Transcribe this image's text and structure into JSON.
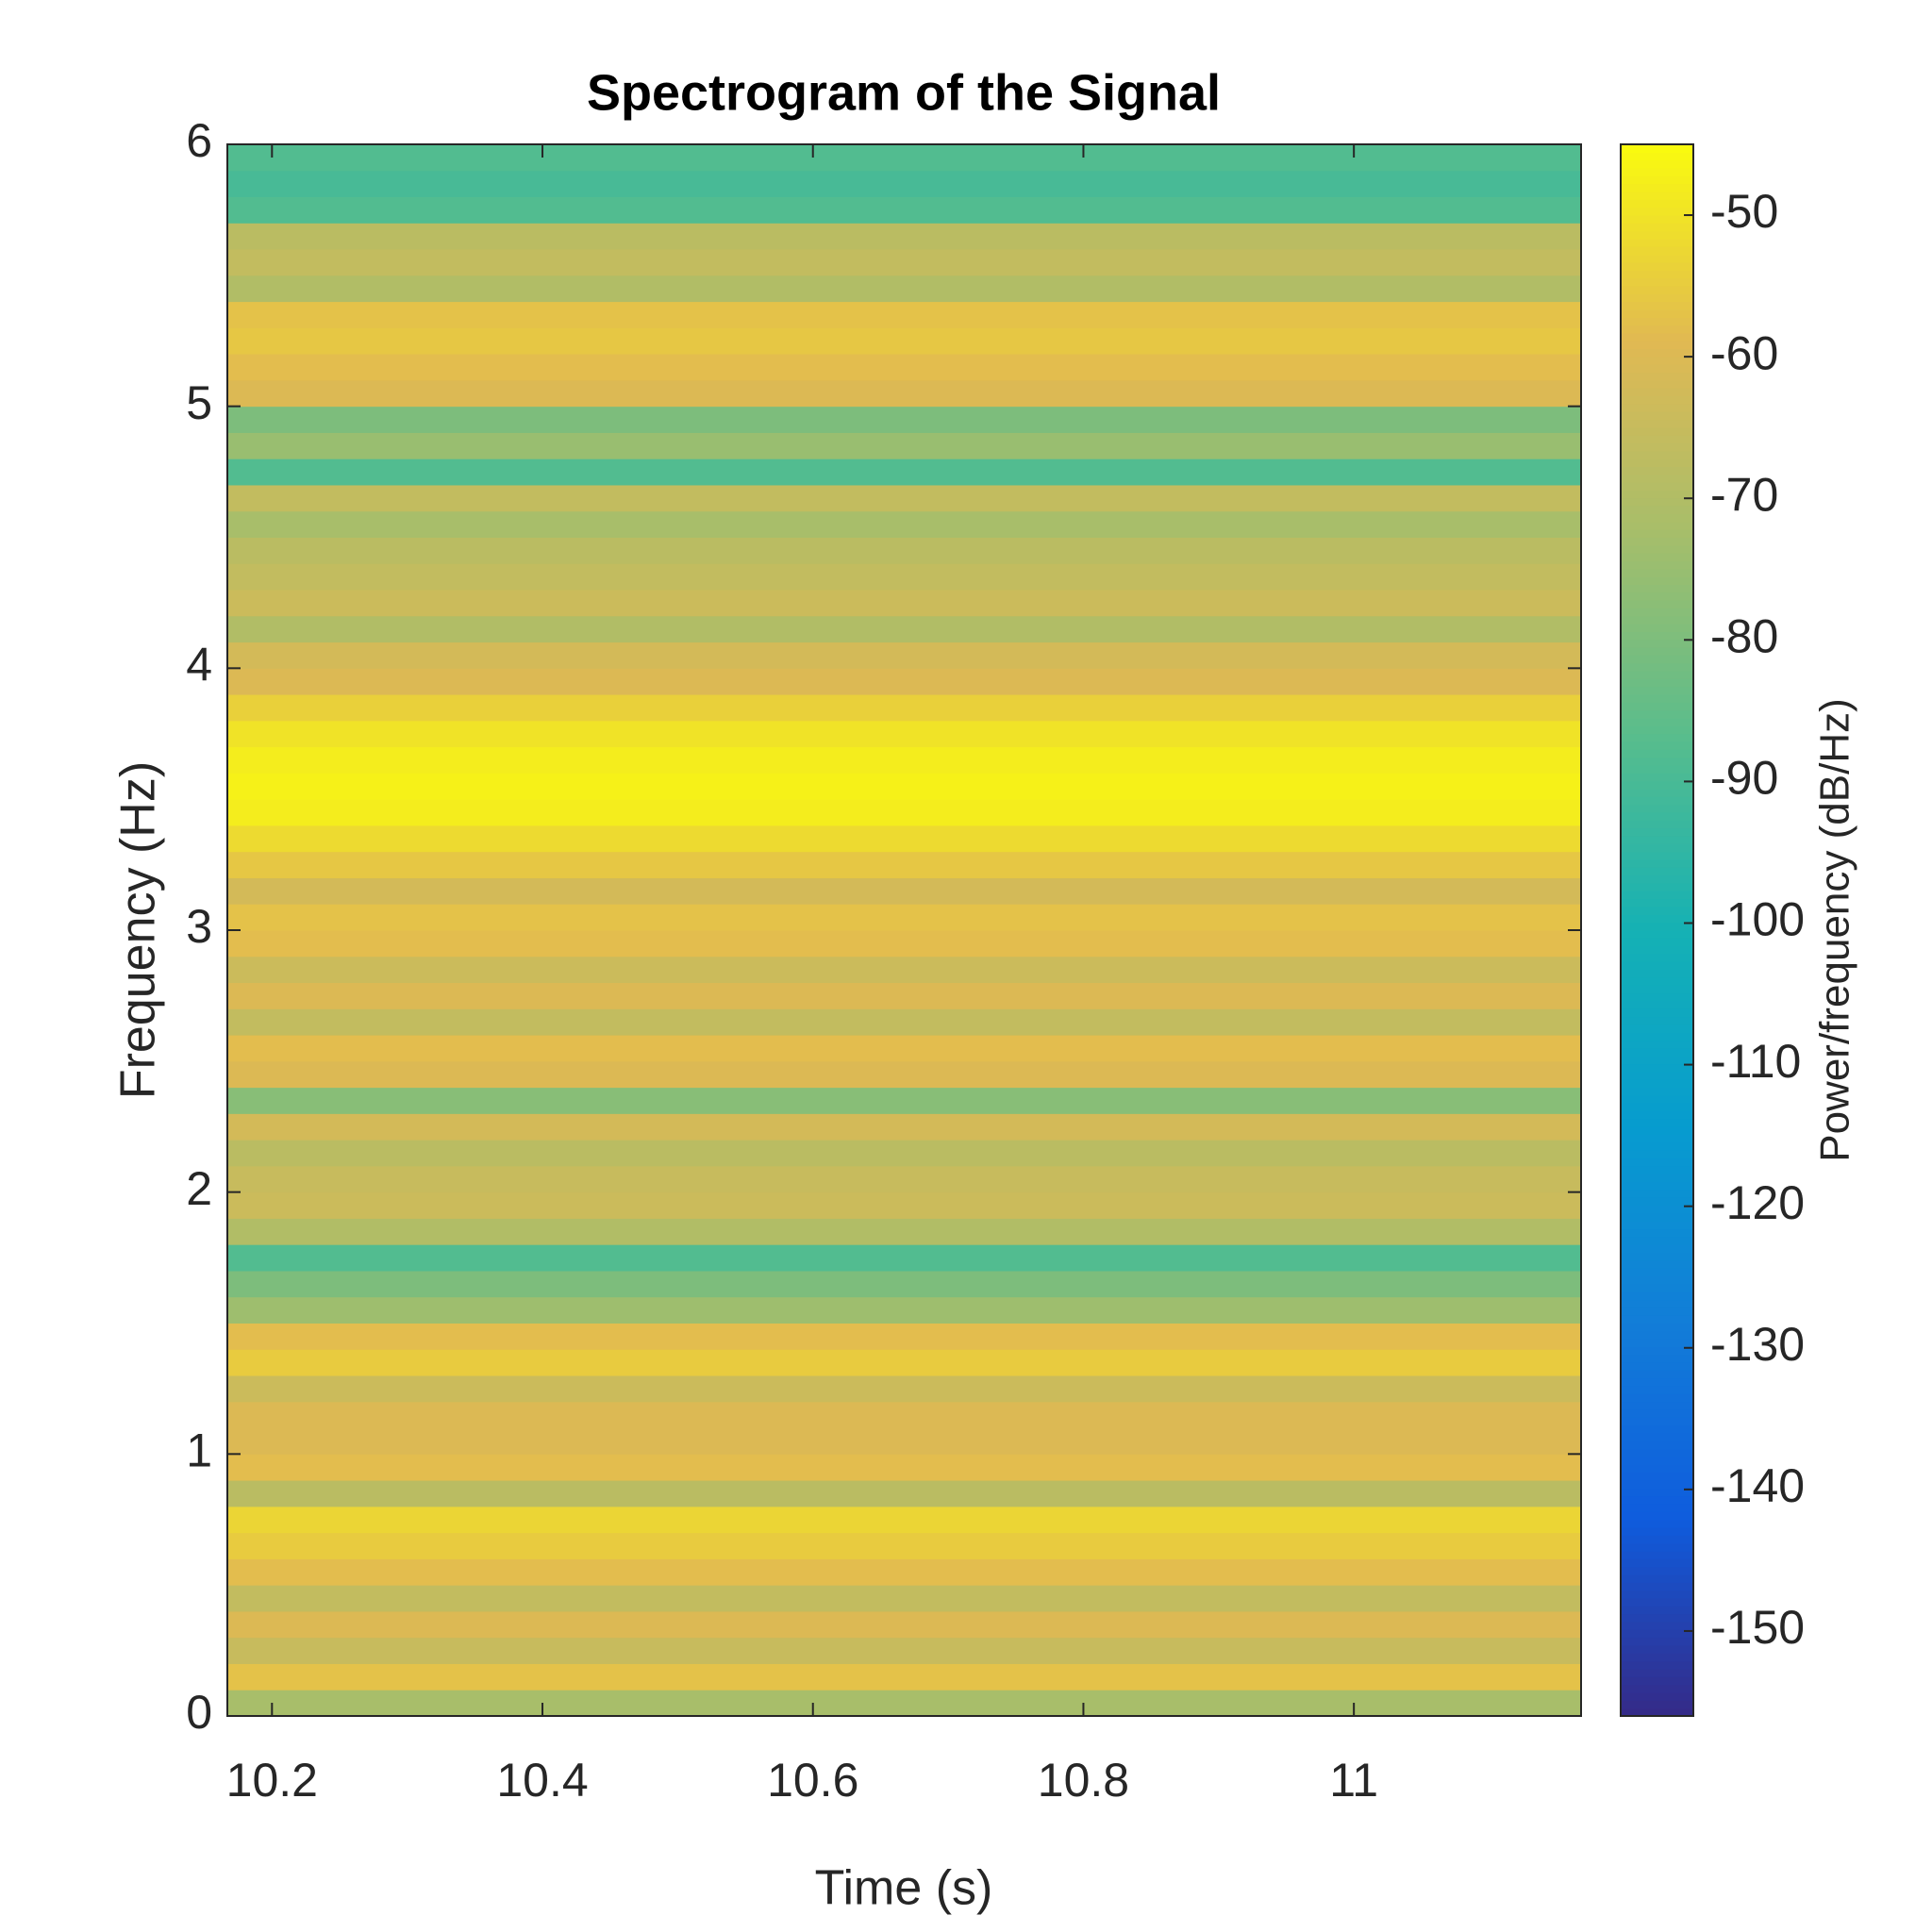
{
  "chart_data": {
    "type": "heatmap",
    "title": "Spectrogram of the Signal",
    "x_label": "Time (s)",
    "y_label": "Frequency (Hz)",
    "colorbar_label": "Power/frequency (dB/Hz)",
    "colormap": "parula",
    "xlim": [
      10.167,
      11.168
    ],
    "xticks": [
      10.2,
      10.4,
      10.6,
      10.8,
      11
    ],
    "ylim": [
      0,
      6
    ],
    "yticks": [
      0,
      1,
      2,
      3,
      4,
      5,
      6
    ],
    "clim": [
      -156,
      -45
    ],
    "cticks": [
      -150,
      -140,
      -130,
      -120,
      -110,
      -100,
      -90,
      -80,
      -70,
      -60,
      -50
    ],
    "ybins": [
      0,
      0.1,
      0.2,
      0.3,
      0.4,
      0.5,
      0.6,
      0.7,
      0.8,
      0.9,
      1,
      1.1,
      1.2,
      1.3,
      1.4,
      1.5,
      1.6,
      1.7,
      1.8,
      1.9,
      2,
      2.1,
      2.2,
      2.3,
      2.4,
      2.5,
      2.6,
      2.7,
      2.8,
      2.9,
      3,
      3.1,
      3.2,
      3.3,
      3.4,
      3.5,
      3.6,
      3.7,
      3.8,
      3.9,
      4,
      4.1,
      4.2,
      4.3,
      4.4,
      4.5,
      4.6,
      4.7,
      4.8,
      4.9,
      5,
      5.1,
      5.2,
      5.3,
      5.4,
      5.5,
      5.6,
      5.7,
      5.8,
      5.9,
      6
    ],
    "values": [
      -72,
      -57,
      -65,
      -60,
      -66,
      -58,
      -55,
      -53,
      -68,
      -58,
      -60,
      -60,
      -64,
      -55,
      -58,
      -74,
      -80,
      -88,
      -70,
      -64,
      -65,
      -68,
      -62,
      -78,
      -60,
      -58,
      -66,
      -60,
      -64,
      -58,
      -57,
      -62,
      -56,
      -52,
      -48,
      -47,
      -48,
      -50,
      -54,
      -60,
      -62,
      -70,
      -64,
      -66,
      -68,
      -72,
      -66,
      -88,
      -75,
      -80,
      -60,
      -58,
      -56,
      -57,
      -70,
      -66,
      -68,
      -88,
      -90,
      -88
    ]
  }
}
